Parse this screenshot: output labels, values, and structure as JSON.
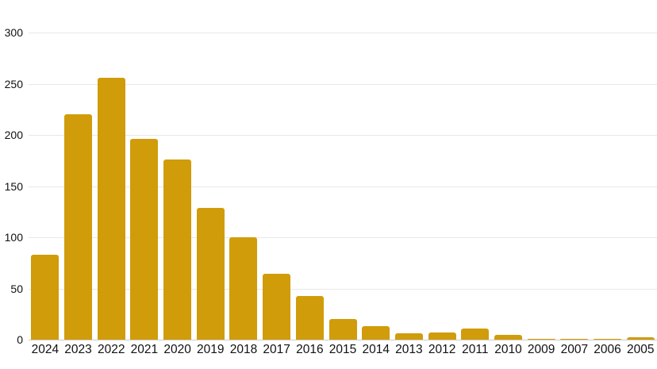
{
  "chart_data": {
    "type": "bar",
    "categories": [
      "2024",
      "2023",
      "2022",
      "2021",
      "2020",
      "2019",
      "2018",
      "2017",
      "2016",
      "2015",
      "2014",
      "2013",
      "2012",
      "2011",
      "2010",
      "2009",
      "2007",
      "2006",
      "2005"
    ],
    "values": [
      83,
      220,
      256,
      196,
      176,
      129,
      100,
      64,
      43,
      20,
      13,
      6,
      7,
      11,
      5,
      1,
      1,
      1,
      2
    ],
    "title": "",
    "xlabel": "",
    "ylabel": "",
    "ylim": [
      0,
      300
    ],
    "yticks": [
      0,
      50,
      100,
      150,
      200,
      250,
      300
    ],
    "grid": "horizontal",
    "legend": "none"
  },
  "colors": {
    "bar": "#D09C0A",
    "gridline": "#E8E8E8",
    "axis_line": "#CDCDCD",
    "text": "#111111",
    "background": "#FFFFFF"
  }
}
